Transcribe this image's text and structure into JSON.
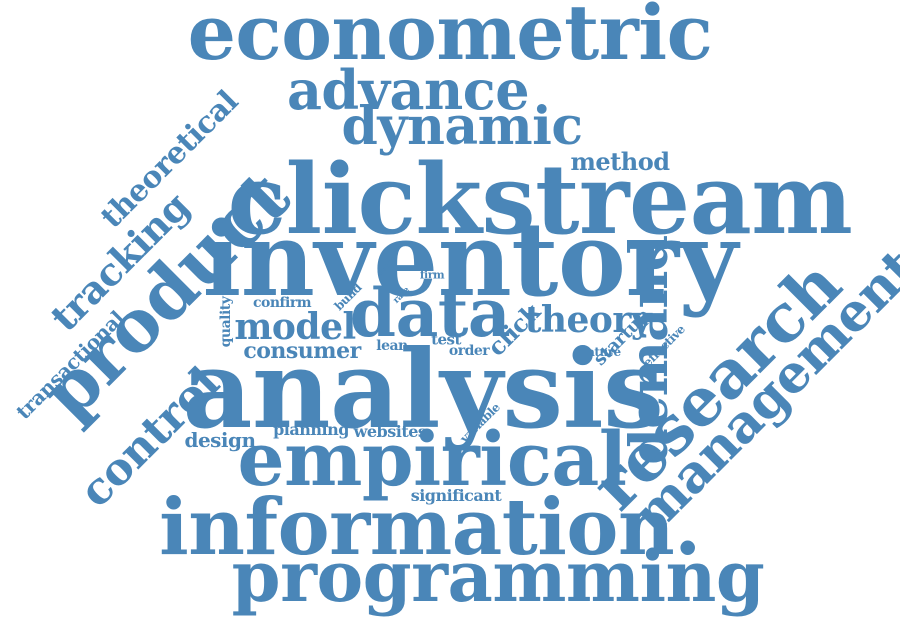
{
  "word_color": "#4A86B8",
  "background": "#FFFFFF",
  "words": [
    {
      "text": "econometric"
    },
    {
      "text": "advance"
    },
    {
      "text": "dynamic"
    },
    {
      "text": "method"
    },
    {
      "text": "clickstream"
    },
    {
      "text": "inventory"
    },
    {
      "text": "theoretical"
    },
    {
      "text": "tracking"
    },
    {
      "text": "product"
    },
    {
      "text": "transactional"
    },
    {
      "text": "quality"
    },
    {
      "text": "confirm"
    },
    {
      "text": "build"
    },
    {
      "text": "more"
    },
    {
      "text": "rate"
    },
    {
      "text": "firm"
    },
    {
      "text": "model"
    },
    {
      "text": "data"
    },
    {
      "text": "theory"
    },
    {
      "text": "demand"
    },
    {
      "text": "consumer"
    },
    {
      "text": "lean"
    },
    {
      "text": "test"
    },
    {
      "text": "order"
    },
    {
      "text": "click"
    },
    {
      "text": "startup"
    },
    {
      "text": "effective"
    },
    {
      "text": "feature"
    },
    {
      "text": "management"
    },
    {
      "text": "analysis"
    },
    {
      "text": "research"
    },
    {
      "text": "control"
    },
    {
      "text": "design"
    },
    {
      "text": "planning"
    },
    {
      "text": "websites"
    },
    {
      "text": "variable"
    },
    {
      "text": "empirical"
    },
    {
      "text": "significant"
    },
    {
      "text": "information."
    },
    {
      "text": "programming"
    }
  ]
}
